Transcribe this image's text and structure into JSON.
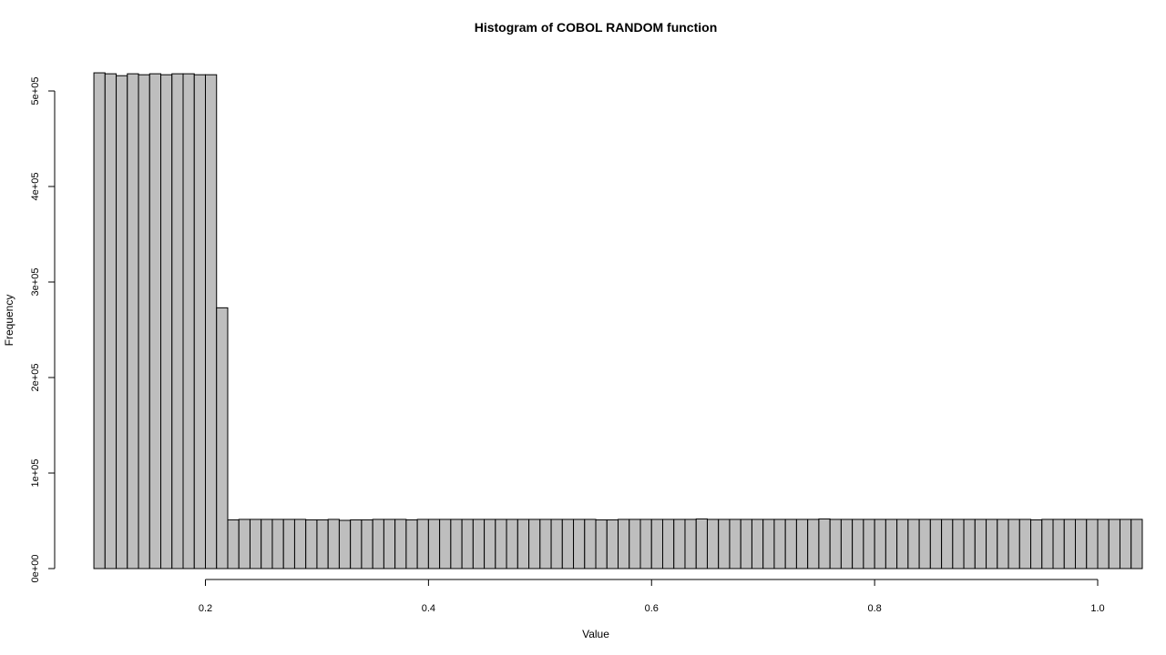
{
  "chart_data": {
    "type": "bar",
    "title": "Histogram of COBOL RANDOM function",
    "xlabel": "Value",
    "ylabel": "Frequency",
    "xlim": [
      0.1,
      1.0
    ],
    "ylim": [
      0,
      520000
    ],
    "xticks": [
      {
        "value": 0.2,
        "label": "0.2"
      },
      {
        "value": 0.4,
        "label": "0.4"
      },
      {
        "value": 0.6,
        "label": "0.6"
      },
      {
        "value": 0.8,
        "label": "0.8"
      },
      {
        "value": 1.0,
        "label": "1.0"
      }
    ],
    "yticks": [
      {
        "value": 0,
        "label": "0e+00"
      },
      {
        "value": 100000,
        "label": "1e+05"
      },
      {
        "value": 200000,
        "label": "2e+05"
      },
      {
        "value": 300000,
        "label": "3e+05"
      },
      {
        "value": 400000,
        "label": "4e+05"
      },
      {
        "value": 500000,
        "label": "5e+05"
      }
    ],
    "bin_start": 0.1,
    "bin_width": 0.01,
    "values": [
      519000,
      518000,
      516000,
      518000,
      517000,
      518000,
      517000,
      518000,
      518000,
      517000,
      517000,
      273000,
      51000,
      51500,
      51500,
      51500,
      51500,
      51500,
      51500,
      51000,
      51000,
      51500,
      50500,
      51000,
      51000,
      51500,
      51500,
      51500,
      51000,
      51500,
      51500,
      51500,
      51500,
      51500,
      51500,
      51500,
      51500,
      51500,
      51500,
      51500,
      51500,
      51500,
      51500,
      51500,
      51500,
      51000,
      51000,
      51500,
      51500,
      51500,
      51500,
      51500,
      51500,
      51500,
      52000,
      51500,
      51500,
      51500,
      51500,
      51500,
      51500,
      51500,
      51500,
      51500,
      51500,
      52000,
      51500,
      51500,
      51500,
      51500,
      51500,
      51500,
      51500,
      51500,
      51500,
      51500,
      51500,
      51500,
      51500,
      51500,
      51500,
      51500,
      51500,
      51500,
      51000,
      51500,
      51500,
      51500,
      51500,
      51500,
      51500,
      51500,
      51500,
      51500
    ],
    "grid": false,
    "legend": "none",
    "colors": {
      "bar_fill": "#bebebe",
      "bar_stroke": "#000000"
    }
  }
}
